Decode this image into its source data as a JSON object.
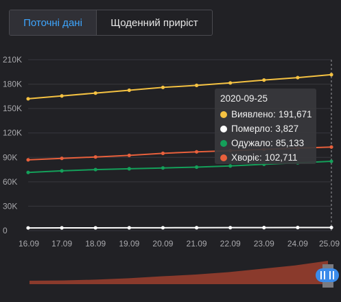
{
  "tabs": [
    {
      "label": "Поточні дані",
      "active": true
    },
    {
      "label": "Щоденний приріст",
      "active": false
    }
  ],
  "tooltip": {
    "date": "2020-09-25",
    "rows": [
      {
        "label": "Виявлено",
        "value": "191,671",
        "color": "#f5c242"
      },
      {
        "label": "Померло",
        "value": "3,827",
        "color": "#ffffff"
      },
      {
        "label": "Одужало",
        "value": "85,133",
        "color": "#14a05a"
      },
      {
        "label": "Хворіє",
        "value": "102,711",
        "color": "#e8603c"
      }
    ]
  },
  "chart_data": {
    "type": "line",
    "categories": [
      "16.09",
      "17.09",
      "18.09",
      "19.09",
      "20.09",
      "21.09",
      "22.09",
      "23.09",
      "24.09",
      "25.09"
    ],
    "ylim": [
      0,
      210000
    ],
    "yticks": [
      {
        "value": 0,
        "label": "0"
      },
      {
        "value": 30000,
        "label": "30K"
      },
      {
        "value": 60000,
        "label": "60K"
      },
      {
        "value": 90000,
        "label": "90K"
      },
      {
        "value": 120000,
        "label": "120K"
      },
      {
        "value": 150000,
        "label": "150K"
      },
      {
        "value": 180000,
        "label": "180K"
      },
      {
        "value": 210000,
        "label": "210K"
      }
    ],
    "grid": true,
    "series": [
      {
        "name": "Виявлено",
        "color": "#f5c242",
        "values": [
          162000,
          165500,
          169000,
          172500,
          176000,
          178500,
          181500,
          185000,
          188000,
          191671
        ]
      },
      {
        "name": "Хворіє",
        "color": "#e8603c",
        "values": [
          87000,
          88800,
          90500,
          92500,
          95000,
          96800,
          98200,
          99800,
          101300,
          102711
        ]
      },
      {
        "name": "Одужало",
        "color": "#14a05a",
        "values": [
          71500,
          73500,
          75000,
          76000,
          77000,
          78000,
          79500,
          81500,
          83300,
          85133
        ]
      },
      {
        "name": "Померло",
        "color": "#ffffff",
        "values": [
          3300,
          3360,
          3420,
          3480,
          3530,
          3590,
          3650,
          3710,
          3770,
          3827
        ]
      }
    ],
    "highlighted_category": "25.09"
  },
  "range_slider": {
    "overview_color": "#8a3a2c",
    "handle_color": "#3b8bea",
    "selection": [
      0.0,
      1.0
    ]
  }
}
